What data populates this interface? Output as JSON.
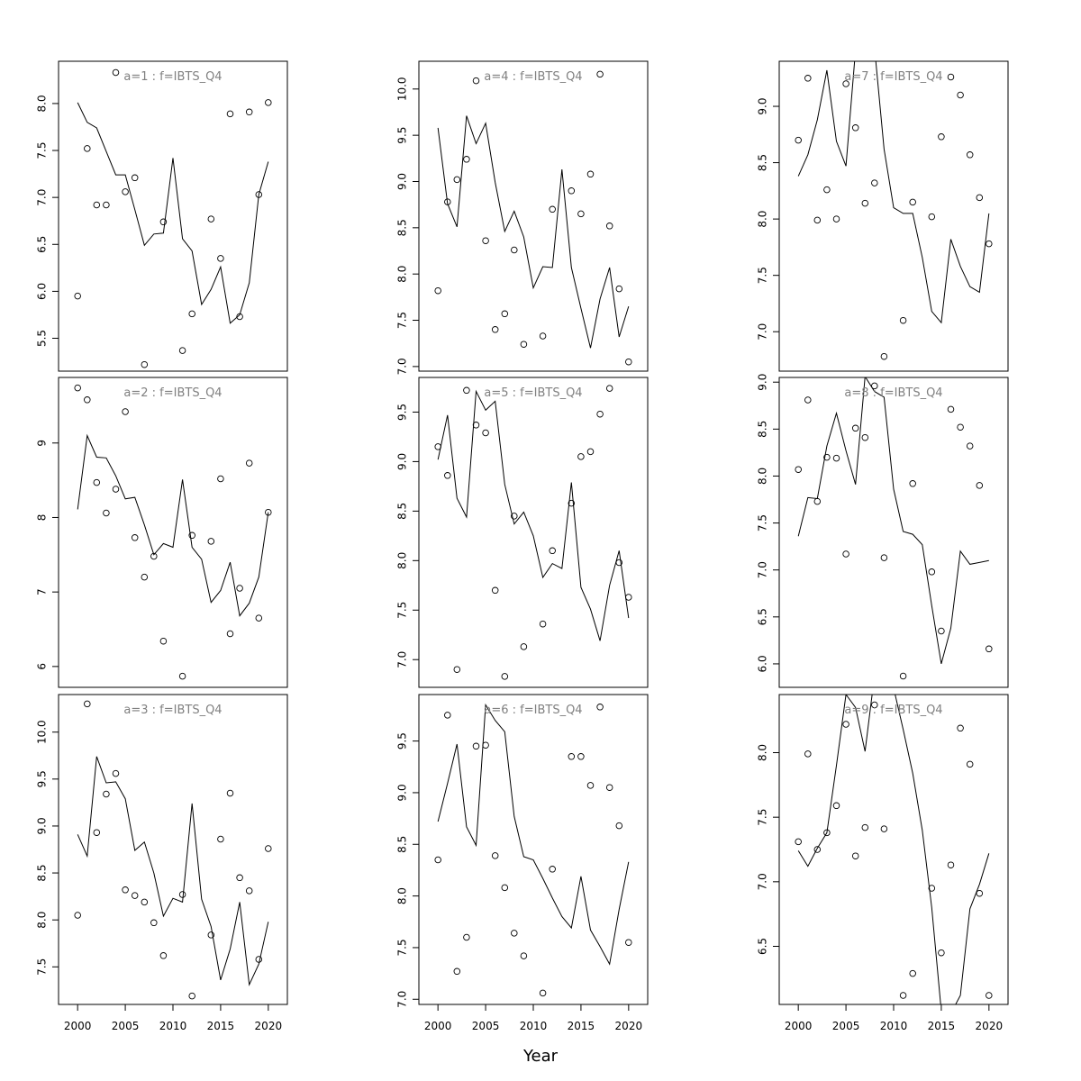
{
  "figure": {
    "xlabel": "Year"
  },
  "chart_data": [
    {
      "type": "scatter",
      "title": "a=1 : f=IBTS_Q4",
      "x_ticks": [
        2000,
        2005,
        2010,
        2015,
        2020
      ],
      "y_ticks": [
        5.5,
        6.0,
        6.5,
        7.0,
        7.5,
        8.0
      ],
      "xlim": [
        1998,
        2022
      ],
      "ylim": [
        5.15,
        8.45
      ],
      "series": [
        {
          "kind": "points",
          "x": [
            2000,
            2001,
            2002,
            2003,
            2004,
            2005,
            2006,
            2007,
            2008,
            2009,
            2010,
            2011,
            2012,
            2013,
            2014,
            2015,
            2016,
            2017,
            2018,
            2019,
            2020
          ],
          "y": [
            5.95,
            7.52,
            6.92,
            6.92,
            8.33,
            7.06,
            7.21,
            5.22,
            null,
            6.74,
            null,
            5.37,
            5.76,
            null,
            6.77,
            6.35,
            7.89,
            5.73,
            7.91,
            7.03,
            8.01
          ]
        },
        {
          "kind": "line",
          "x": [
            2000,
            2001,
            2002,
            2003,
            2004,
            2005,
            2006,
            2007,
            2008,
            2009,
            2010,
            2011,
            2012,
            2013,
            2014,
            2015,
            2016,
            2017,
            2018,
            2019,
            2020
          ],
          "y": [
            8.01,
            7.8,
            7.74,
            7.49,
            7.24,
            7.24,
            6.87,
            6.49,
            6.61,
            6.62,
            7.42,
            6.56,
            6.43,
            5.86,
            6.02,
            6.26,
            5.66,
            5.75,
            6.09,
            7.03,
            7.38
          ]
        }
      ]
    },
    {
      "type": "scatter",
      "title": "a=2 : f=IBTS_Q4",
      "x_ticks": [
        2000,
        2005,
        2010,
        2015,
        2020
      ],
      "y_ticks": [
        6,
        7,
        8,
        9
      ],
      "xlim": [
        1998,
        2022
      ],
      "ylim": [
        5.72,
        9.88
      ],
      "series": [
        {
          "kind": "points",
          "x": [
            2000,
            2001,
            2002,
            2003,
            2004,
            2005,
            2006,
            2007,
            2008,
            2009,
            2011,
            2012,
            2014,
            2015,
            2016,
            2017,
            2018,
            2019,
            2020
          ],
          "y": [
            9.74,
            9.58,
            8.47,
            8.06,
            8.38,
            9.42,
            7.73,
            7.2,
            7.48,
            6.34,
            5.87,
            7.76,
            7.68,
            8.52,
            6.44,
            7.05,
            8.73,
            6.65,
            8.07
          ]
        },
        {
          "kind": "line",
          "x": [
            2000,
            2001,
            2002,
            2003,
            2004,
            2005,
            2006,
            2007,
            2008,
            2009,
            2010,
            2011,
            2012,
            2013,
            2014,
            2015,
            2016,
            2017,
            2018,
            2019,
            2020
          ],
          "y": [
            8.11,
            9.1,
            8.81,
            8.8,
            8.56,
            8.25,
            8.27,
            7.9,
            7.5,
            7.65,
            7.6,
            8.51,
            7.6,
            7.44,
            6.86,
            7.02,
            7.4,
            6.68,
            6.85,
            7.2,
            8.07
          ]
        }
      ]
    },
    {
      "type": "scatter",
      "title": "a=3 : f=IBTS_Q4",
      "x_ticks": [
        2000,
        2005,
        2010,
        2015,
        2020
      ],
      "y_ticks": [
        7.5,
        8.0,
        8.5,
        9.0,
        9.5,
        10.0
      ],
      "xlim": [
        1998,
        2022
      ],
      "ylim": [
        7.1,
        10.4
      ],
      "series": [
        {
          "kind": "points",
          "x": [
            2000,
            2001,
            2002,
            2003,
            2004,
            2005,
            2006,
            2007,
            2008,
            2009,
            2011,
            2012,
            2014,
            2015,
            2016,
            2017,
            2018,
            2019,
            2020
          ],
          "y": [
            8.05,
            10.3,
            8.93,
            9.34,
            9.56,
            8.32,
            8.26,
            8.19,
            7.97,
            7.62,
            8.27,
            7.19,
            7.84,
            8.86,
            9.35,
            8.45,
            8.31,
            7.58,
            8.76
          ]
        },
        {
          "kind": "line",
          "x": [
            2000,
            2001,
            2002,
            2003,
            2004,
            2005,
            2006,
            2007,
            2008,
            2009,
            2010,
            2011,
            2012,
            2013,
            2014,
            2015,
            2016,
            2017,
            2018,
            2019,
            2020
          ],
          "y": [
            8.91,
            8.68,
            9.74,
            9.46,
            9.47,
            9.29,
            8.74,
            8.83,
            8.5,
            8.04,
            8.23,
            8.19,
            9.24,
            8.22,
            7.93,
            7.36,
            7.69,
            8.19,
            7.31,
            7.53,
            7.98
          ]
        }
      ]
    },
    {
      "type": "scatter",
      "title": "a=4 : f=IBTS_Q4",
      "x_ticks": [
        2000,
        2005,
        2010,
        2015,
        2020
      ],
      "y_ticks": [
        7.0,
        7.5,
        8.0,
        8.5,
        9.0,
        9.5,
        10.0
      ],
      "xlim": [
        1998,
        2022
      ],
      "ylim": [
        6.95,
        10.3
      ],
      "series": [
        {
          "kind": "points",
          "x": [
            2000,
            2001,
            2002,
            2003,
            2004,
            2005,
            2006,
            2007,
            2008,
            2009,
            2011,
            2012,
            2013,
            2014,
            2015,
            2016,
            2017,
            2018,
            2019,
            2020
          ],
          "y": [
            7.82,
            8.78,
            9.02,
            9.24,
            10.09,
            8.36,
            7.4,
            7.57,
            8.26,
            7.24,
            7.33,
            8.7,
            null,
            8.9,
            8.65,
            9.08,
            10.16,
            8.52,
            7.84,
            7.05
          ]
        },
        {
          "kind": "line",
          "x": [
            2000,
            2001,
            2002,
            2003,
            2004,
            2005,
            2006,
            2007,
            2008,
            2009,
            2010,
            2011,
            2012,
            2013,
            2014,
            2015,
            2016,
            2017,
            2018,
            2019,
            2020
          ],
          "y": [
            9.58,
            8.76,
            8.51,
            9.71,
            9.41,
            9.63,
            8.99,
            8.46,
            8.68,
            8.4,
            7.85,
            8.08,
            8.07,
            9.13,
            8.07,
            7.63,
            7.2,
            7.73,
            8.07,
            7.32,
            7.65
          ]
        }
      ]
    },
    {
      "type": "scatter",
      "title": "a=5 : f=IBTS_Q4",
      "x_ticks": [
        2000,
        2005,
        2010,
        2015,
        2020
      ],
      "y_ticks": [
        7.0,
        7.5,
        8.0,
        8.5,
        9.0,
        9.5
      ],
      "xlim": [
        1998,
        2022
      ],
      "ylim": [
        6.72,
        9.85
      ],
      "series": [
        {
          "kind": "points",
          "x": [
            2000,
            2001,
            2002,
            2003,
            2004,
            2005,
            2006,
            2007,
            2008,
            2009,
            2011,
            2012,
            2014,
            2015,
            2016,
            2017,
            2018,
            2019,
            2020
          ],
          "y": [
            9.15,
            8.86,
            6.9,
            9.72,
            9.37,
            9.29,
            7.7,
            6.83,
            8.45,
            7.13,
            7.36,
            8.1,
            8.58,
            9.05,
            9.1,
            9.48,
            9.74,
            7.98,
            7.63
          ]
        },
        {
          "kind": "line",
          "x": [
            2000,
            2001,
            2002,
            2003,
            2004,
            2005,
            2006,
            2007,
            2008,
            2009,
            2010,
            2011,
            2012,
            2013,
            2014,
            2015,
            2016,
            2017,
            2018,
            2019,
            2020
          ],
          "y": [
            9.02,
            9.47,
            8.63,
            8.44,
            9.71,
            9.52,
            9.61,
            8.77,
            8.37,
            8.49,
            8.25,
            7.83,
            7.97,
            7.92,
            8.79,
            7.73,
            7.51,
            7.19,
            7.75,
            8.1,
            7.42
          ]
        }
      ]
    },
    {
      "type": "scatter",
      "title": "a=6 : f=IBTS_Q4",
      "x_ticks": [
        2000,
        2005,
        2010,
        2015,
        2020
      ],
      "y_ticks": [
        7.0,
        7.5,
        8.0,
        8.5,
        9.0,
        9.5
      ],
      "xlim": [
        1998,
        2022
      ],
      "ylim": [
        6.95,
        9.95
      ],
      "series": [
        {
          "kind": "points",
          "x": [
            2000,
            2001,
            2002,
            2003,
            2004,
            2005,
            2006,
            2007,
            2008,
            2009,
            2011,
            2012,
            2014,
            2015,
            2016,
            2017,
            2018,
            2019,
            2020
          ],
          "y": [
            8.35,
            9.75,
            7.27,
            7.6,
            9.45,
            9.46,
            8.39,
            8.08,
            7.64,
            7.42,
            7.06,
            8.26,
            9.35,
            9.35,
            9.07,
            9.83,
            9.05,
            8.68,
            7.55
          ]
        },
        {
          "kind": "line",
          "x": [
            2000,
            2001,
            2002,
            2003,
            2004,
            2005,
            2006,
            2007,
            2008,
            2009,
            2010,
            2011,
            2012,
            2013,
            2014,
            2015,
            2016,
            2017,
            2018,
            2019,
            2020
          ],
          "y": [
            8.72,
            9.09,
            9.47,
            8.67,
            8.49,
            9.85,
            9.7,
            9.59,
            8.77,
            8.38,
            8.35,
            8.17,
            7.98,
            7.8,
            7.69,
            8.19,
            7.67,
            7.51,
            7.34,
            7.87,
            8.33
          ]
        }
      ]
    },
    {
      "type": "scatter",
      "title": "a=7 : f=IBTS_Q4",
      "x_ticks": [
        2000,
        2005,
        2010,
        2015,
        2020
      ],
      "y_ticks": [
        7.0,
        7.5,
        8.0,
        8.5,
        9.0
      ],
      "xlim": [
        1998,
        2022
      ],
      "ylim": [
        6.65,
        9.4
      ],
      "series": [
        {
          "kind": "points",
          "x": [
            2000,
            2001,
            2002,
            2003,
            2004,
            2005,
            2006,
            2007,
            2008,
            2009,
            2011,
            2012,
            2014,
            2015,
            2016,
            2017,
            2018,
            2019,
            2020
          ],
          "y": [
            8.7,
            9.25,
            7.99,
            8.26,
            8.0,
            9.2,
            8.81,
            8.14,
            8.32,
            6.78,
            7.1,
            8.15,
            8.02,
            8.73,
            9.26,
            9.1,
            8.57,
            8.19,
            7.78
          ]
        },
        {
          "kind": "line",
          "x": [
            2000,
            2001,
            2002,
            2003,
            2004,
            2005,
            2006,
            2007,
            2008,
            2009,
            2010,
            2011,
            2012,
            2013,
            2014,
            2015,
            2016,
            2017,
            2018,
            2019,
            2020
          ],
          "y": [
            8.38,
            8.57,
            8.88,
            9.32,
            8.69,
            8.47,
            9.5,
            9.6,
            9.52,
            8.62,
            8.1,
            8.05,
            8.05,
            7.66,
            7.18,
            7.08,
            7.82,
            7.58,
            7.4,
            7.35,
            8.05
          ]
        }
      ]
    },
    {
      "type": "scatter",
      "title": "a=8 : f=IBTS_Q4",
      "x_ticks": [
        2000,
        2005,
        2010,
        2015,
        2020
      ],
      "y_ticks": [
        6.0,
        6.5,
        7.0,
        7.5,
        8.0,
        8.5,
        9.0
      ],
      "xlim": [
        1998,
        2022
      ],
      "ylim": [
        5.75,
        9.05
      ],
      "series": [
        {
          "kind": "points",
          "x": [
            2000,
            2001,
            2002,
            2003,
            2004,
            2005,
            2006,
            2007,
            2008,
            2009,
            2011,
            2012,
            2014,
            2015,
            2016,
            2017,
            2018,
            2019,
            2020
          ],
          "y": [
            8.07,
            8.81,
            7.73,
            8.2,
            8.19,
            7.17,
            8.51,
            8.41,
            8.96,
            7.13,
            5.87,
            7.92,
            6.98,
            6.35,
            8.71,
            8.52,
            8.32,
            7.9,
            6.16
          ]
        },
        {
          "kind": "line",
          "x": [
            2000,
            2001,
            2002,
            2003,
            2004,
            2005,
            2006,
            2007,
            2008,
            2009,
            2010,
            2011,
            2012,
            2013,
            2014,
            2015,
            2016,
            2017,
            2018,
            2019,
            2020
          ],
          "y": [
            7.36,
            7.77,
            7.76,
            8.32,
            8.67,
            8.27,
            7.91,
            9.06,
            8.9,
            8.84,
            7.86,
            7.41,
            7.38,
            7.27,
            6.62,
            6.0,
            6.38,
            7.2,
            7.06,
            7.08,
            7.1
          ]
        }
      ]
    },
    {
      "type": "scatter",
      "title": "a=9 : f=IBTS_Q4",
      "x_ticks": [
        2000,
        2005,
        2010,
        2015,
        2020
      ],
      "y_ticks": [
        6.5,
        7.0,
        7.5,
        8.0
      ],
      "xlim": [
        1998,
        2022
      ],
      "ylim": [
        6.05,
        8.45
      ],
      "series": [
        {
          "kind": "points",
          "x": [
            2000,
            2001,
            2002,
            2003,
            2004,
            2005,
            2006,
            2007,
            2008,
            2009,
            2011,
            2012,
            2014,
            2015,
            2016,
            2017,
            2018,
            2019,
            2020
          ],
          "y": [
            7.31,
            7.99,
            7.25,
            7.38,
            7.59,
            8.22,
            7.2,
            7.42,
            8.37,
            7.41,
            6.12,
            6.29,
            6.95,
            6.45,
            7.13,
            8.19,
            7.91,
            6.91,
            6.12
          ]
        },
        {
          "kind": "line",
          "x": [
            2000,
            2001,
            2002,
            2003,
            2004,
            2005,
            2006,
            2007,
            2008,
            2009,
            2010,
            2011,
            2012,
            2013,
            2014,
            2015,
            2016,
            2017,
            2018,
            2019,
            2020
          ],
          "y": [
            7.24,
            7.12,
            7.26,
            7.38,
            7.9,
            8.45,
            8.35,
            8.01,
            8.6,
            8.62,
            8.5,
            8.18,
            7.84,
            7.4,
            6.8,
            6.0,
            5.98,
            6.12,
            6.79,
            6.98,
            7.22
          ]
        }
      ]
    }
  ]
}
